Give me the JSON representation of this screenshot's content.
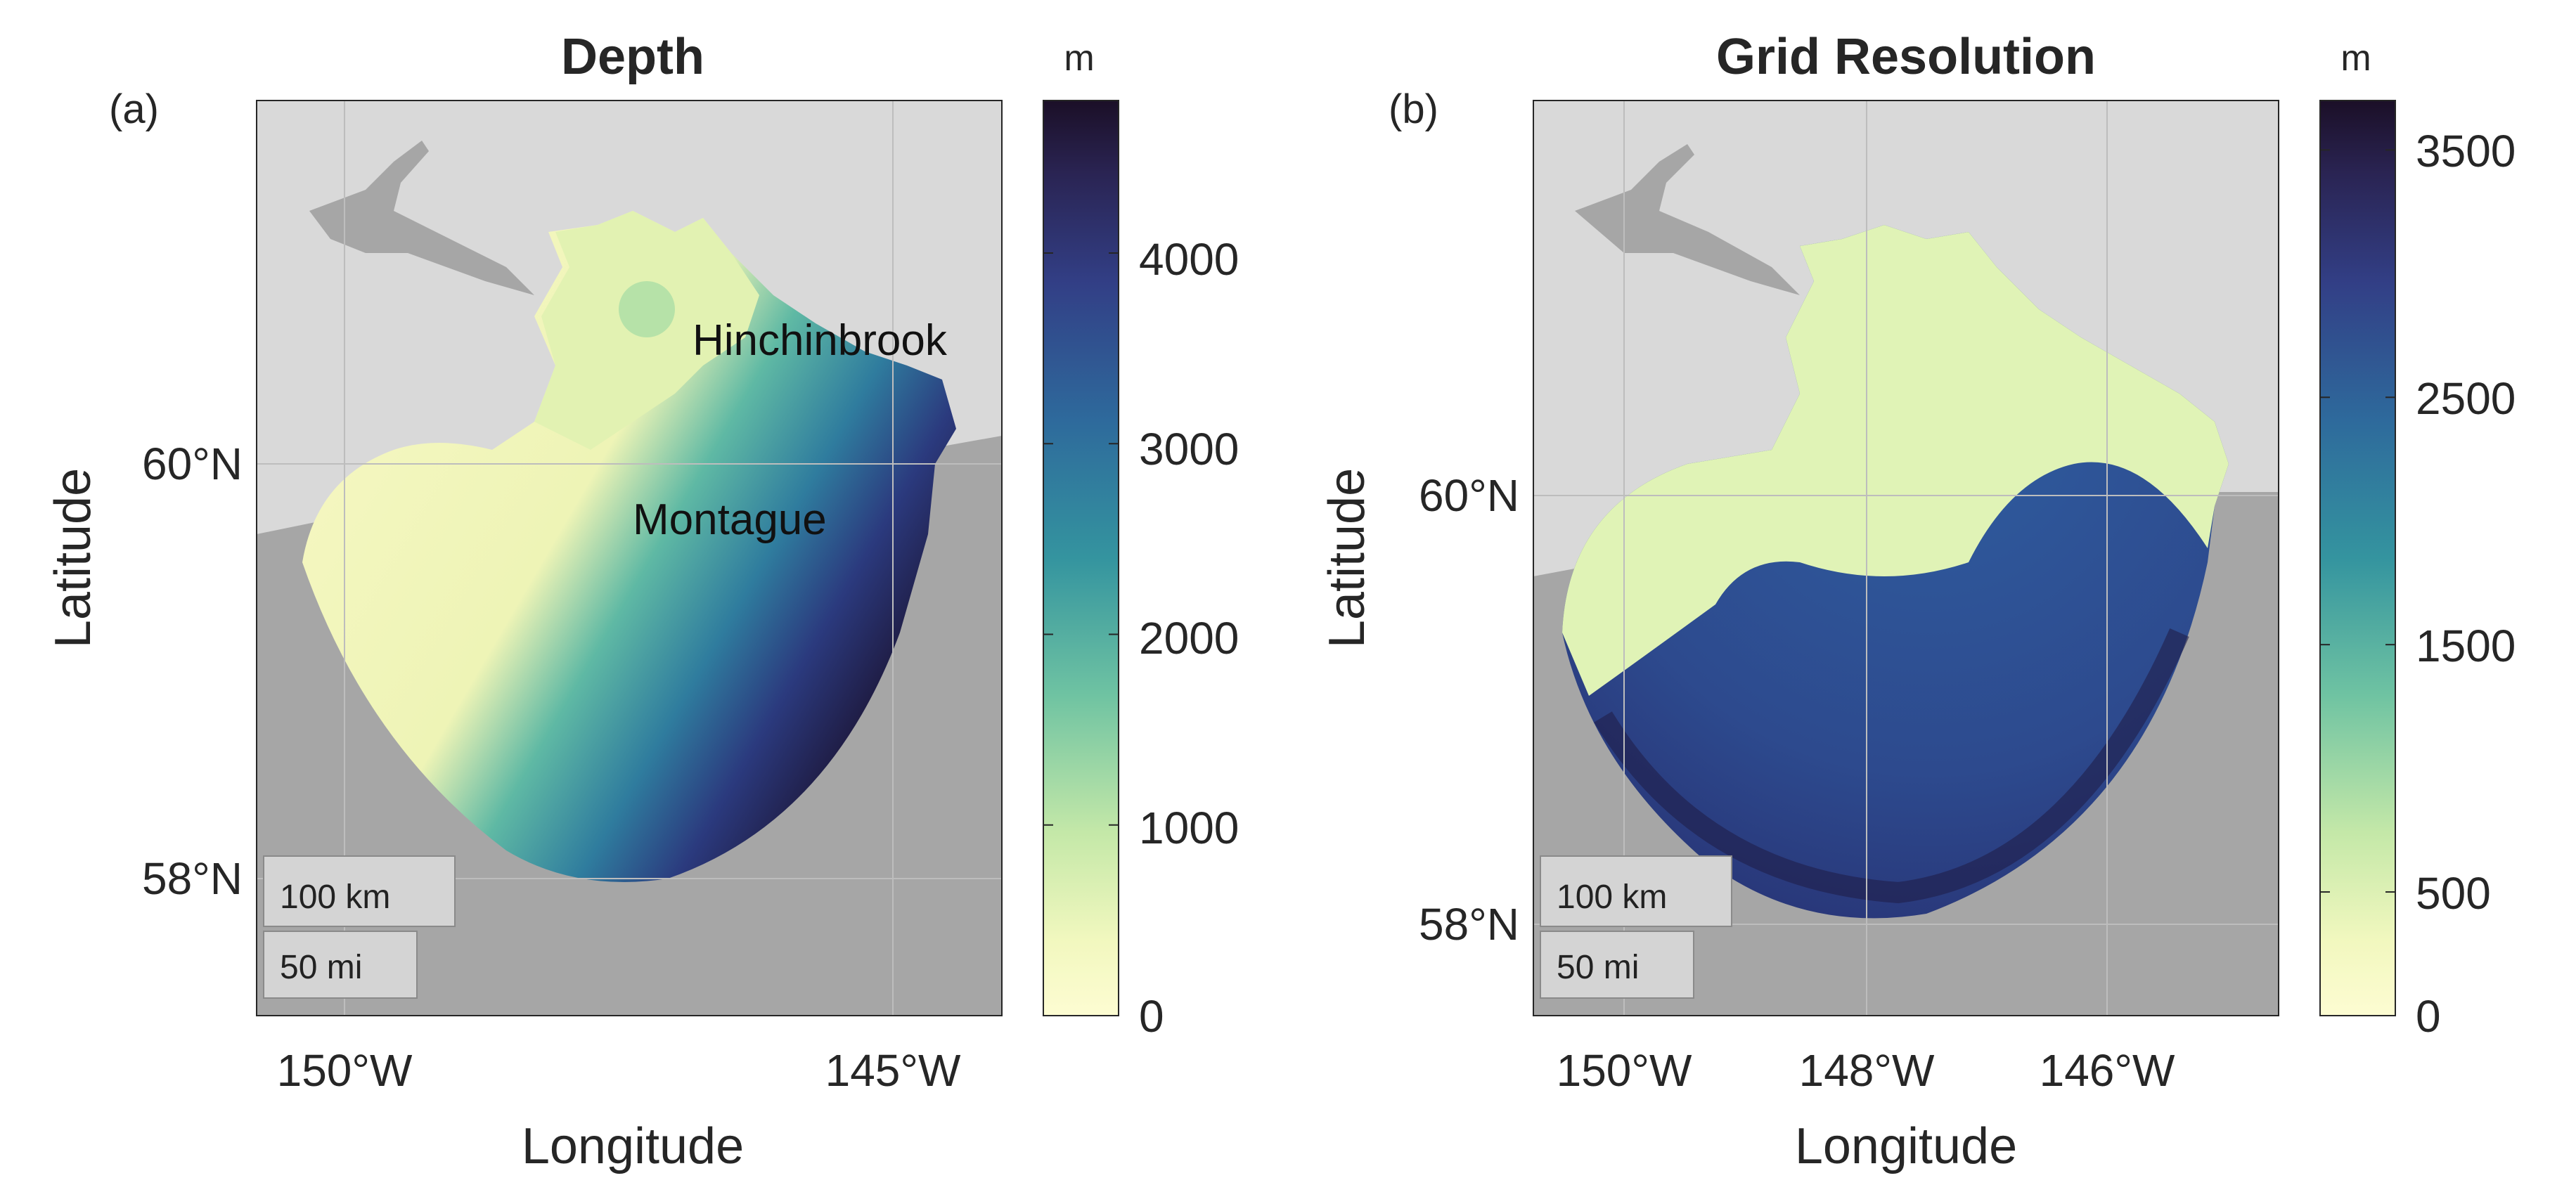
{
  "figure": {
    "panels": [
      {
        "tag": "(a)",
        "title": "Depth",
        "xlabel": "Longitude",
        "ylabel": "Latitude",
        "xticks": [
          "150°W",
          "145°W"
        ],
        "yticks": [
          "60°N",
          "58°N"
        ],
        "labels": {
          "hinchinbrook": "Hinchinbrook",
          "montague": "Montague"
        },
        "scalebar": {
          "km": "100 km",
          "mi": "50 mi"
        },
        "colorbar": {
          "unit": "m",
          "ticks": [
            "4000",
            "3000",
            "2000",
            "1000",
            "0"
          ],
          "range": [
            0,
            4800
          ]
        }
      },
      {
        "tag": "(b)",
        "title": "Grid Resolution",
        "xlabel": "Longitude",
        "ylabel": "Latitude",
        "xticks": [
          "150°W",
          "148°W",
          "146°W"
        ],
        "yticks": [
          "60°N",
          "58°N"
        ],
        "scalebar": {
          "km": "100 km",
          "mi": "50 mi"
        },
        "colorbar": {
          "unit": "m",
          "ticks": [
            "3500",
            "2500",
            "1500",
            "500",
            "0"
          ],
          "range": [
            0,
            3700
          ]
        }
      }
    ],
    "colors": {
      "colormap": [
        "#fdfcd2",
        "#e4f3b0",
        "#9ed9a0",
        "#57b9a4",
        "#2e8a9e",
        "#2f5f99",
        "#303f86",
        "#2a2453",
        "#1b0f27"
      ],
      "land": "#d9d9d9",
      "land_dark": "#a6a6a6",
      "ocean_bg": "#a6a6a6"
    }
  }
}
